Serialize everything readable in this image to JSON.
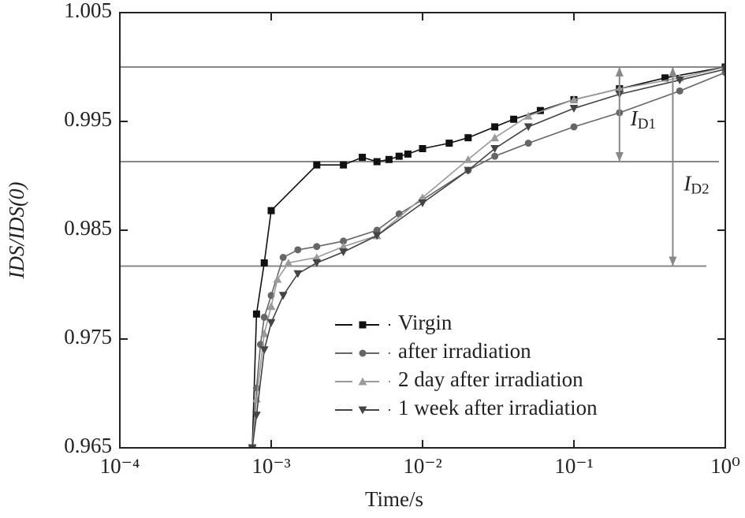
{
  "chart_data": {
    "type": "line",
    "xlabel": "Time/s",
    "ylabel": "IDS/IDS(0)",
    "xscale": "log",
    "xlim": [
      0.0001,
      1
    ],
    "xticks": [
      {
        "value": 0.0001,
        "label": "10⁻⁴"
      },
      {
        "value": 0.001,
        "label": "10⁻³"
      },
      {
        "value": 0.01,
        "label": "10⁻²"
      },
      {
        "value": 0.1,
        "label": "10⁻¹"
      },
      {
        "value": 1,
        "label": "10⁰"
      }
    ],
    "ylim": [
      0.965,
      1.005
    ],
    "yticks": [
      0.965,
      0.975,
      0.985,
      0.995,
      1.005
    ],
    "legend_loc": "lower center",
    "hlines": [
      1.0,
      0.9913,
      0.9817
    ],
    "annotations": [
      {
        "text": "ID1",
        "x": 0.2,
        "from": 1.0,
        "to": 0.9913
      },
      {
        "text": "ID2",
        "x": 0.45,
        "from": 1.0,
        "to": 0.9817
      }
    ],
    "series": [
      {
        "name": "Virgin",
        "color": "#111111",
        "marker": "square",
        "x": [
          0.00075,
          0.0008,
          0.0009,
          0.001,
          0.002,
          0.003,
          0.004,
          0.005,
          0.006,
          0.007,
          0.008,
          0.01,
          0.015,
          0.02,
          0.03,
          0.04,
          0.06,
          0.1,
          0.2,
          0.4,
          1.0
        ],
        "values": [
          0.965,
          0.9773,
          0.982,
          0.9868,
          0.991,
          0.991,
          0.9917,
          0.9913,
          0.9915,
          0.9918,
          0.992,
          0.9925,
          0.993,
          0.9935,
          0.9945,
          0.9952,
          0.996,
          0.997,
          0.998,
          0.999,
          1.0
        ]
      },
      {
        "name": "after irradiation",
        "color": "#666666",
        "marker": "circle",
        "x": [
          0.00075,
          0.0008,
          0.00085,
          0.0009,
          0.001,
          0.0012,
          0.0015,
          0.002,
          0.003,
          0.005,
          0.007,
          0.01,
          0.02,
          0.03,
          0.05,
          0.1,
          0.2,
          0.5,
          1.0
        ],
        "values": [
          0.965,
          0.9705,
          0.9745,
          0.977,
          0.979,
          0.9825,
          0.9832,
          0.9835,
          0.984,
          0.985,
          0.9865,
          0.9878,
          0.9905,
          0.9918,
          0.993,
          0.9945,
          0.9958,
          0.9978,
          0.9995
        ]
      },
      {
        "name": "2 day after irradiation",
        "color": "#9a9a9a",
        "marker": "triangle-up",
        "x": [
          0.00075,
          0.0008,
          0.0009,
          0.001,
          0.0011,
          0.0013,
          0.002,
          0.003,
          0.005,
          0.01,
          0.02,
          0.03,
          0.05,
          0.1,
          0.2,
          0.5,
          1.0
        ],
        "values": [
          0.965,
          0.9695,
          0.9755,
          0.978,
          0.9805,
          0.982,
          0.9825,
          0.9835,
          0.9845,
          0.988,
          0.9915,
          0.9935,
          0.9955,
          0.997,
          0.998,
          0.999,
          1.0
        ]
      },
      {
        "name": "1 week after irradiation",
        "color": "#444444",
        "marker": "triangle-down",
        "x": [
          0.00075,
          0.0008,
          0.0009,
          0.001,
          0.0012,
          0.0015,
          0.002,
          0.003,
          0.005,
          0.01,
          0.02,
          0.03,
          0.05,
          0.1,
          0.2,
          0.5,
          1.0
        ],
        "values": [
          0.965,
          0.968,
          0.974,
          0.9765,
          0.979,
          0.981,
          0.982,
          0.983,
          0.9845,
          0.9875,
          0.9905,
          0.9925,
          0.9945,
          0.9962,
          0.9975,
          0.9988,
          0.9998
        ]
      }
    ]
  }
}
